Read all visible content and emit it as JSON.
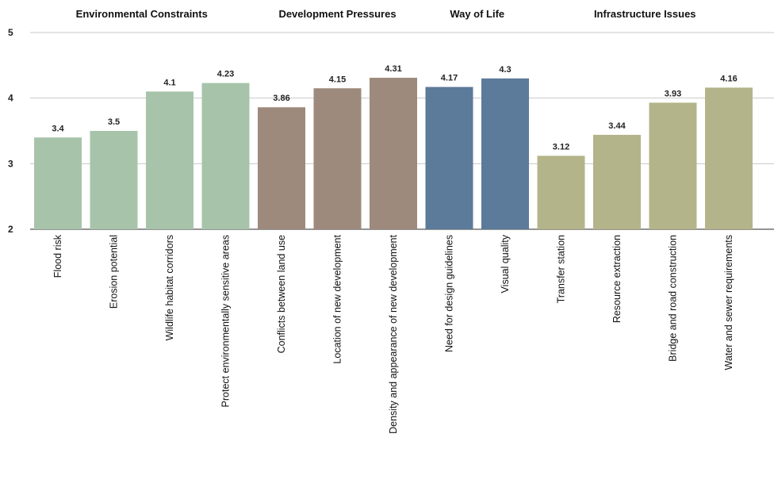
{
  "chart_data": {
    "type": "bar",
    "groups": [
      {
        "name": "Environmental Constraints",
        "color": "#a7c4ab"
      },
      {
        "name": "Development Pressures",
        "color": "#9d8a7c"
      },
      {
        "name": "Way of Life",
        "color": "#5c7a9a"
      },
      {
        "name": "Infrastructure Issues",
        "color": "#b4b48a"
      }
    ],
    "categories": [
      "Flood risk",
      "Erosion potential",
      "Wildlife habitat corridors",
      "Protect environmentally sensitive areas",
      "Conflicts between land use",
      "Location of new development",
      "Density and appearance of new development",
      "Need for design guidelines",
      "Visual quality",
      "Transfer station",
      "Resource extraction",
      "Bridge and road construction",
      "Water and sewer requirements"
    ],
    "category_group": [
      0,
      0,
      0,
      0,
      1,
      1,
      1,
      2,
      2,
      3,
      3,
      3,
      3
    ],
    "values": [
      3.4,
      3.5,
      4.1,
      4.23,
      3.86,
      4.15,
      4.31,
      4.17,
      4.3,
      3.12,
      3.44,
      3.93,
      4.16
    ],
    "value_labels": [
      "3.4",
      "3.5",
      "4.1",
      "4.23",
      "3.86",
      "4.15",
      "4.31",
      "4.17",
      "4.3",
      "3.12",
      "3.44",
      "3.93",
      "4.16"
    ],
    "yticks": [
      2,
      3,
      4,
      5
    ],
    "ytick_labels": [
      "2",
      "3",
      "4",
      "5"
    ],
    "ylim": [
      2,
      5
    ],
    "grid": true,
    "legend": "group labels along top"
  }
}
